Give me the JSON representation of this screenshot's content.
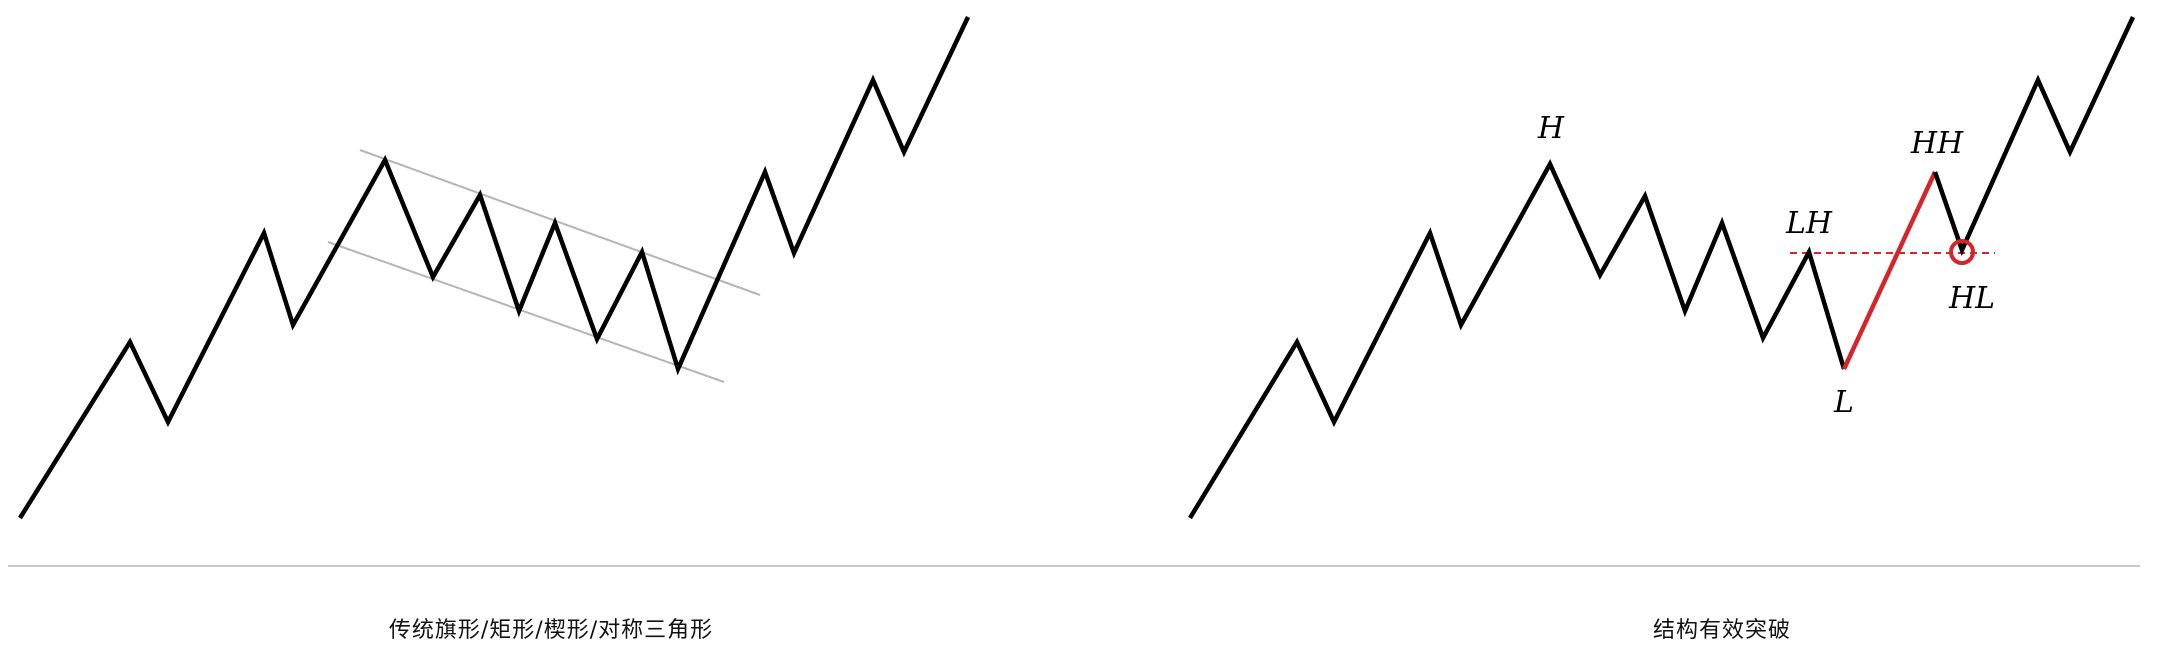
{
  "left_panel": {
    "caption": "传统旗形/矩形/楔形/对称三角形"
  },
  "right_panel": {
    "caption": "结构有效突破",
    "labels": {
      "H": "H",
      "LH": "LH",
      "L": "L",
      "HH": "HH",
      "HL": "HL"
    }
  },
  "colors": {
    "price_line": "#000000",
    "channel_line": "#b5b5b5",
    "breakout": "#d6242b",
    "divider": "#c8c8c8"
  }
}
